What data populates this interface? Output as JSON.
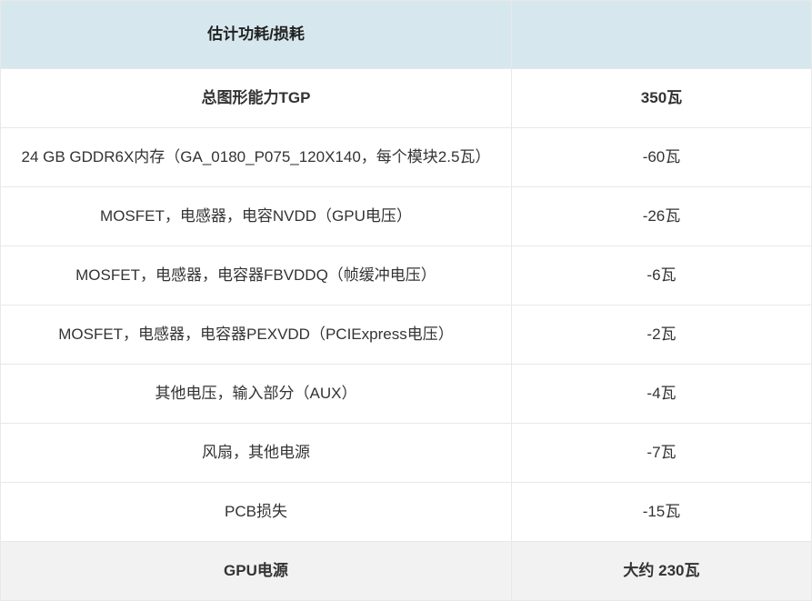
{
  "table": {
    "header": {
      "left": "估计功耗/损耗",
      "right": ""
    },
    "rows": [
      {
        "left": "总图形能力TGP",
        "right": "350瓦",
        "bold": true
      },
      {
        "left": "24 GB GDDR6X内存（GA_0180_P075_120X140，每个模块2.5瓦）",
        "right": "-60瓦",
        "bold": false
      },
      {
        "left": "MOSFET，电感器，电容NVDD（GPU电压）",
        "right": "-26瓦",
        "bold": false
      },
      {
        "left": "MOSFET，电感器，电容器FBVDDQ（帧缓冲电压）",
        "right": "-6瓦",
        "bold": false
      },
      {
        "left": "MOSFET，电感器，电容器PEXVDD（PCIExpress电压）",
        "right": "-2瓦",
        "bold": false
      },
      {
        "left": "其他电压，输入部分（AUX）",
        "right": "-4瓦",
        "bold": false
      },
      {
        "left": "风扇，其他电源",
        "right": "-7瓦",
        "bold": false
      },
      {
        "left": "PCB损失",
        "right": "-15瓦",
        "bold": false
      }
    ],
    "footer": {
      "left": "GPU电源",
      "right": "大约 230瓦"
    },
    "styles": {
      "header_bg": "#d6e8ee",
      "footer_bg": "#f2f2f2",
      "border_color": "#e8e8e8",
      "text_color": "#333333",
      "font_size": 17,
      "col_widths": [
        "63%",
        "37%"
      ]
    }
  }
}
